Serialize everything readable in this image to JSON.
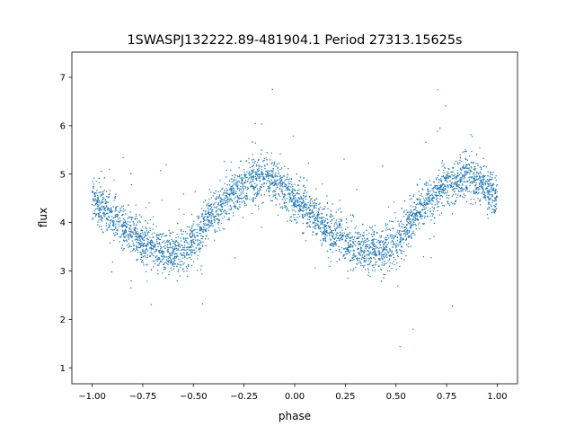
{
  "chart_data": {
    "type": "scatter",
    "title": "1SWASPJ132222.89-481904.1 Period 27313.15625s",
    "xlabel": "phase",
    "ylabel": "flux",
    "xlim": [
      -1.1,
      1.1
    ],
    "ylim": [
      0.67,
      7.52
    ],
    "xticks": [
      -1.0,
      -0.75,
      -0.5,
      -0.25,
      0.0,
      0.25,
      0.5,
      0.75,
      1.0
    ],
    "xtick_labels": [
      "−1.00",
      "−0.75",
      "−0.50",
      "−0.25",
      "0.00",
      "0.25",
      "0.50",
      "0.75",
      "1.00"
    ],
    "yticks": [
      1,
      2,
      3,
      4,
      5,
      6,
      7
    ],
    "ytick_labels": [
      "1",
      "2",
      "3",
      "4",
      "5",
      "6",
      "7"
    ],
    "grid": false,
    "point_color": "#1f77b4",
    "series": [
      {
        "x": [
          -1.0,
          -0.9,
          -0.8,
          -0.7,
          -0.6,
          -0.5,
          -0.4,
          -0.3,
          -0.2,
          -0.1,
          0.0,
          0.1,
          0.2,
          0.3,
          0.4,
          0.5,
          0.6,
          0.7,
          0.8,
          0.9,
          1.0
        ],
        "y": [
          4.5,
          4.1,
          3.75,
          3.5,
          3.4,
          3.6,
          4.2,
          4.6,
          4.9,
          4.85,
          4.5,
          4.1,
          3.75,
          3.5,
          3.4,
          3.6,
          4.2,
          4.6,
          4.9,
          4.85,
          4.5
        ]
      }
    ]
  }
}
